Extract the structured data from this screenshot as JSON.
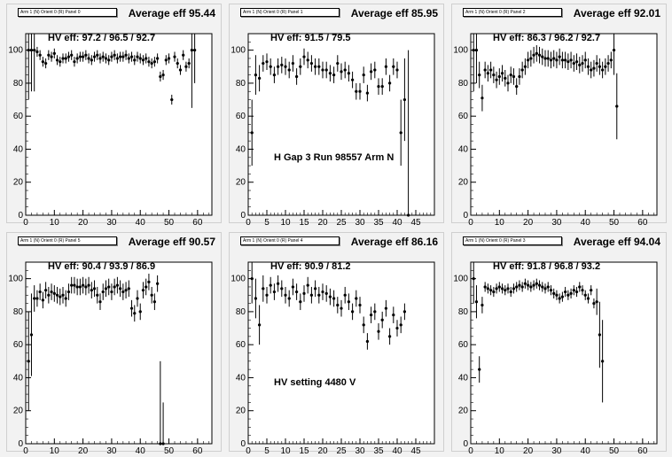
{
  "panels": [
    {
      "title": "Arm 1 (N) Orient 0 (R) Panel 0",
      "avg": "Average eff 95.44",
      "hv": "HV eff:   97.2 / 96.5 / 92.7"
    },
    {
      "title": "Arm 1 (N) Orient 0 (R) Panel 1",
      "avg": "Average eff 85.95",
      "hv": "HV eff:   91.5 / 79.5",
      "note": "H Gap 3 Run 98557 Arm N"
    },
    {
      "title": "Arm 1 (N) Orient 0 (R) Panel 2",
      "avg": "Average eff 92.01",
      "hv": "HV eff:   86.3 / 96.2 / 92.7"
    },
    {
      "title": "Arm 1 (N) Orient 0 (R) Panel 5",
      "avg": "Average eff 90.57",
      "hv": "HV eff:   90.4 / 93.9 / 86.9"
    },
    {
      "title": "Arm 1 (N) Orient 0 (R) Panel 4",
      "avg": "Average eff 86.16",
      "hv": "HV eff:   90.9 / 81.2",
      "note": "HV setting 4480 V"
    },
    {
      "title": "Arm 1 (N) Orient 0 (R) Panel 3",
      "avg": "Average eff 94.04",
      "hv": "HV eff:   91.8 / 96.8 / 93.2"
    }
  ],
  "chart_data": [
    {
      "type": "scatter",
      "title": "Average eff 95.44",
      "xlim": [
        0,
        65
      ],
      "ylim": [
        0,
        110
      ],
      "xticks": [
        0,
        10,
        20,
        30,
        40,
        50,
        60
      ],
      "yticks": [
        0,
        20,
        40,
        60,
        80,
        100
      ],
      "y": [
        100,
        100,
        100,
        99,
        97,
        93,
        92,
        97,
        96,
        98,
        94,
        93,
        95,
        95,
        96,
        97,
        93,
        95,
        96,
        96,
        97,
        95,
        94,
        96,
        97,
        95,
        96,
        95,
        94,
        96,
        97,
        95,
        96,
        96,
        97,
        95,
        96,
        94,
        96,
        95,
        94,
        95,
        93,
        92,
        93,
        95,
        84,
        85,
        94,
        95,
        70,
        96,
        92,
        88,
        97,
        90,
        92,
        100,
        100
      ],
      "err": [
        30,
        25,
        25,
        3,
        3,
        3,
        3,
        3,
        3,
        3,
        3,
        3,
        3,
        3,
        3,
        3,
        3,
        3,
        3,
        3,
        3,
        3,
        3,
        3,
        3,
        3,
        3,
        3,
        3,
        3,
        3,
        3,
        3,
        3,
        3,
        3,
        3,
        3,
        3,
        3,
        3,
        3,
        3,
        3,
        3,
        3,
        3,
        3,
        3,
        3,
        3,
        3,
        3,
        3,
        3,
        3,
        3,
        35,
        20
      ]
    },
    {
      "type": "scatter",
      "title": "Average eff 85.95",
      "xlim": [
        0,
        50
      ],
      "ylim": [
        0,
        110
      ],
      "xticks": [
        0,
        5,
        10,
        15,
        20,
        25,
        30,
        35,
        40,
        45
      ],
      "yticks": [
        0,
        20,
        40,
        60,
        80,
        100
      ],
      "y": [
        50,
        85,
        83,
        92,
        93,
        90,
        85,
        90,
        91,
        90,
        88,
        92,
        84,
        90,
        96,
        94,
        92,
        90,
        90,
        88,
        88,
        86,
        85,
        92,
        87,
        88,
        86,
        82,
        75,
        75,
        85,
        74,
        87,
        88,
        78,
        78,
        90,
        80,
        90,
        88,
        50,
        70,
        0
      ],
      "err": [
        20,
        12,
        8,
        5,
        5,
        5,
        5,
        5,
        5,
        5,
        5,
        5,
        5,
        5,
        5,
        5,
        5,
        5,
        5,
        5,
        5,
        5,
        5,
        5,
        5,
        5,
        5,
        5,
        5,
        5,
        5,
        5,
        5,
        5,
        5,
        5,
        5,
        5,
        5,
        5,
        20,
        25,
        100
      ]
    },
    {
      "type": "scatter",
      "title": "Average eff 92.01",
      "xlim": [
        0,
        65
      ],
      "ylim": [
        0,
        110
      ],
      "xticks": [
        0,
        10,
        20,
        30,
        40,
        50,
        60
      ],
      "yticks": [
        0,
        20,
        40,
        60,
        80,
        100
      ],
      "y": [
        100,
        100,
        85,
        71,
        88,
        86,
        88,
        85,
        82,
        84,
        86,
        83,
        80,
        85,
        84,
        78,
        84,
        88,
        90,
        94,
        95,
        97,
        98,
        97,
        96,
        95,
        95,
        94,
        95,
        94,
        96,
        94,
        94,
        93,
        94,
        92,
        93,
        91,
        92,
        94,
        90,
        88,
        89,
        92,
        90,
        88,
        90,
        92,
        94,
        100,
        66
      ],
      "err": [
        25,
        20,
        8,
        8,
        5,
        5,
        5,
        5,
        5,
        5,
        5,
        5,
        5,
        5,
        5,
        5,
        5,
        5,
        5,
        5,
        5,
        5,
        5,
        5,
        5,
        5,
        5,
        5,
        5,
        5,
        5,
        5,
        5,
        5,
        5,
        5,
        5,
        5,
        5,
        5,
        5,
        5,
        5,
        5,
        5,
        5,
        5,
        5,
        5,
        15,
        20
      ]
    },
    {
      "type": "scatter",
      "title": "Average eff 90.57",
      "xlim": [
        0,
        65
      ],
      "ylim": [
        0,
        110
      ],
      "xticks": [
        0,
        10,
        20,
        30,
        40,
        50,
        60
      ],
      "yticks": [
        0,
        20,
        40,
        60,
        80,
        100
      ],
      "y": [
        50,
        66,
        88,
        88,
        92,
        87,
        93,
        90,
        92,
        91,
        90,
        89,
        90,
        88,
        92,
        96,
        96,
        95,
        95,
        96,
        95,
        96,
        93,
        94,
        90,
        86,
        92,
        94,
        95,
        92,
        95,
        96,
        94,
        92,
        93,
        94,
        82,
        79,
        88,
        80,
        93,
        95,
        98,
        90,
        86,
        97,
        0,
        0
      ],
      "err": [
        30,
        25,
        8,
        5,
        5,
        5,
        5,
        5,
        5,
        5,
        5,
        5,
        5,
        5,
        5,
        5,
        5,
        5,
        5,
        5,
        5,
        5,
        5,
        5,
        5,
        5,
        5,
        5,
        5,
        5,
        5,
        5,
        5,
        5,
        5,
        5,
        5,
        5,
        5,
        5,
        5,
        5,
        5,
        5,
        5,
        5,
        50,
        25
      ]
    },
    {
      "type": "scatter",
      "title": "Average eff 86.16",
      "xlim": [
        0,
        50
      ],
      "ylim": [
        0,
        110
      ],
      "xticks": [
        0,
        5,
        10,
        15,
        20,
        25,
        30,
        35,
        40,
        45
      ],
      "yticks": [
        0,
        20,
        40,
        60,
        80,
        100
      ],
      "y": [
        100,
        88,
        72,
        94,
        90,
        96,
        92,
        97,
        94,
        90,
        88,
        95,
        92,
        86,
        91,
        96,
        90,
        94,
        90,
        92,
        91,
        89,
        88,
        84,
        82,
        90,
        86,
        80,
        88,
        84,
        72,
        62,
        78,
        80,
        68,
        75,
        82,
        65,
        78,
        70,
        72,
        80
      ],
      "err": [
        15,
        12,
        12,
        8,
        5,
        5,
        5,
        5,
        5,
        5,
        5,
        5,
        5,
        5,
        5,
        5,
        5,
        5,
        5,
        5,
        5,
        5,
        5,
        5,
        5,
        5,
        5,
        5,
        5,
        5,
        5,
        5,
        5,
        5,
        5,
        5,
        5,
        5,
        5,
        5,
        5,
        5
      ]
    },
    {
      "type": "scatter",
      "title": "Average eff 94.04",
      "xlim": [
        0,
        65
      ],
      "ylim": [
        0,
        110
      ],
      "xticks": [
        0,
        10,
        20,
        30,
        40,
        50,
        60
      ],
      "yticks": [
        0,
        20,
        40,
        60,
        80,
        100
      ],
      "y": [
        100,
        86,
        45,
        84,
        95,
        94,
        93,
        92,
        94,
        95,
        94,
        93,
        94,
        92,
        94,
        95,
        96,
        95,
        97,
        96,
        95,
        96,
        97,
        96,
        95,
        94,
        95,
        93,
        91,
        90,
        88,
        89,
        92,
        90,
        91,
        93,
        92,
        95,
        93,
        90,
        88,
        93,
        85,
        86,
        66,
        50
      ],
      "err": [
        15,
        10,
        8,
        5,
        3,
        3,
        3,
        3,
        3,
        3,
        3,
        3,
        3,
        3,
        3,
        3,
        3,
        3,
        3,
        3,
        3,
        3,
        3,
        3,
        3,
        3,
        3,
        3,
        3,
        3,
        3,
        3,
        3,
        3,
        3,
        3,
        3,
        3,
        3,
        3,
        3,
        3,
        3,
        8,
        20,
        25
      ]
    }
  ]
}
